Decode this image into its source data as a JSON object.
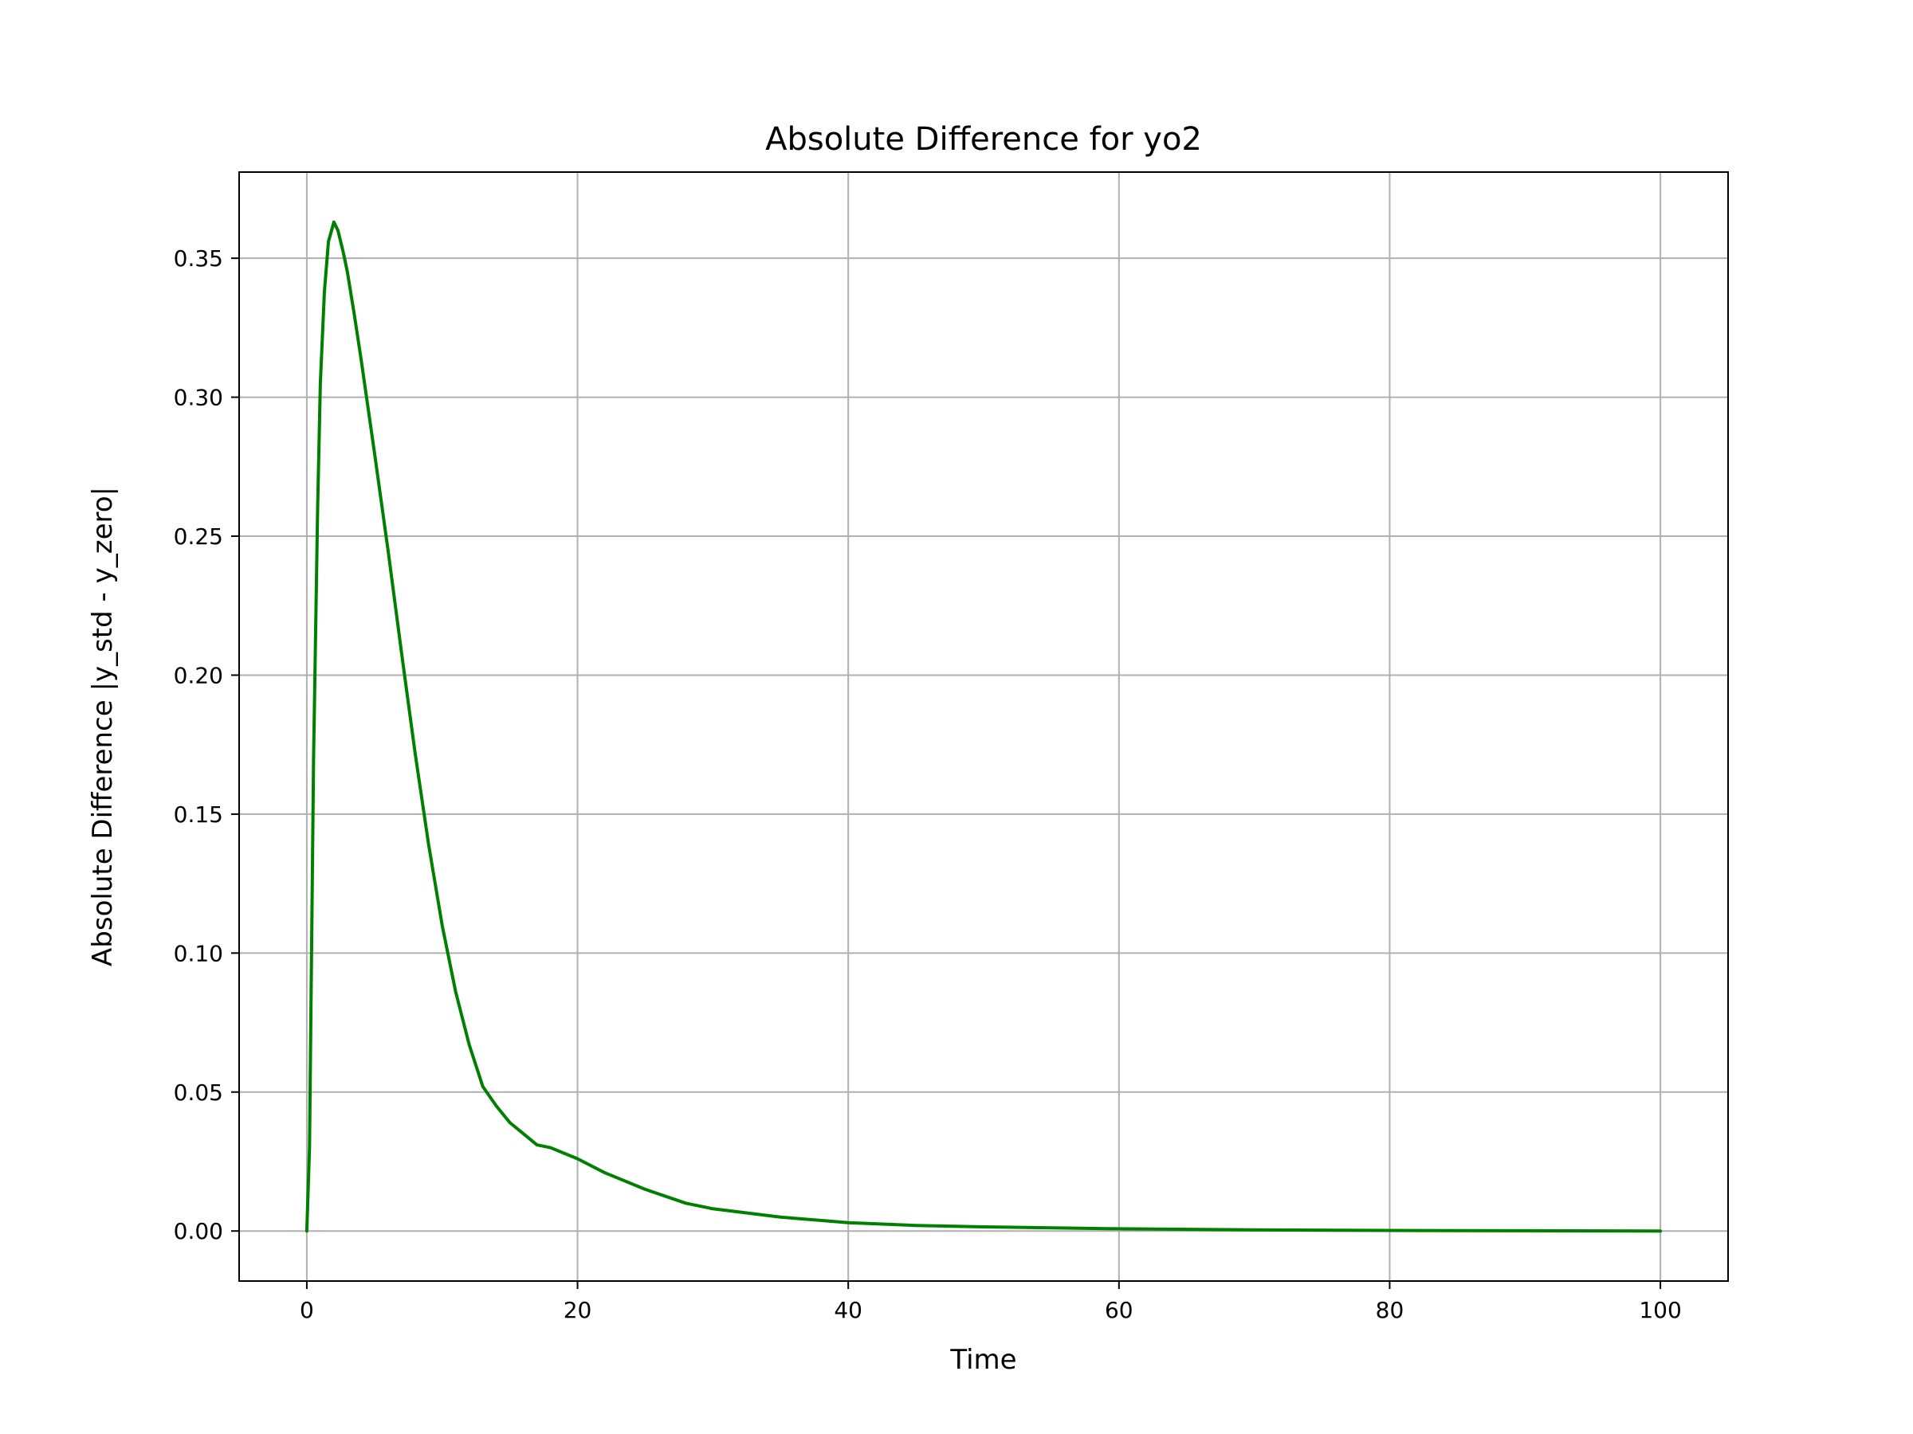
{
  "chart_data": {
    "type": "line",
    "title": "Absolute Difference for yo2",
    "xlabel": "Time",
    "ylabel": "Absolute Difference |y_std - y_zero|",
    "xlim": [
      -5,
      105
    ],
    "ylim": [
      -0.018,
      0.381
    ],
    "xticks": [
      0,
      20,
      40,
      60,
      80,
      100
    ],
    "xtick_labels": [
      "0",
      "20",
      "40",
      "60",
      "80",
      "100"
    ],
    "yticks": [
      0.0,
      0.05,
      0.1,
      0.15,
      0.2,
      0.25,
      0.3,
      0.35
    ],
    "ytick_labels": [
      "0.00",
      "0.05",
      "0.10",
      "0.15",
      "0.20",
      "0.25",
      "0.30",
      "0.35"
    ],
    "grid": true,
    "legend": "none",
    "series": [
      {
        "color": "#008000",
        "x": [
          0,
          0.2,
          0.5,
          0.8,
          1.0,
          1.3,
          1.6,
          2.0,
          2.3,
          2.7,
          3.0,
          3.5,
          4.0,
          5.0,
          6.0,
          7.0,
          8.0,
          9.0,
          10.0,
          11.0,
          12.0,
          13.0,
          14.0,
          15.0,
          16.0,
          17.0,
          18.0,
          20.0,
          22.0,
          25.0,
          28.0,
          30.0,
          35.0,
          40.0,
          45.0,
          50.0,
          60.0,
          70.0,
          80.0,
          90.0,
          100.0
        ],
        "y": [
          0.0,
          0.03,
          0.17,
          0.26,
          0.305,
          0.338,
          0.356,
          0.363,
          0.36,
          0.352,
          0.345,
          0.33,
          0.314,
          0.28,
          0.245,
          0.208,
          0.172,
          0.139,
          0.11,
          0.086,
          0.067,
          0.052,
          0.045,
          0.039,
          0.035,
          0.031,
          0.03,
          0.026,
          0.021,
          0.015,
          0.01,
          0.008,
          0.005,
          0.003,
          0.002,
          0.0015,
          0.0008,
          0.0004,
          0.0002,
          0.0001,
          0.0
        ]
      }
    ]
  }
}
